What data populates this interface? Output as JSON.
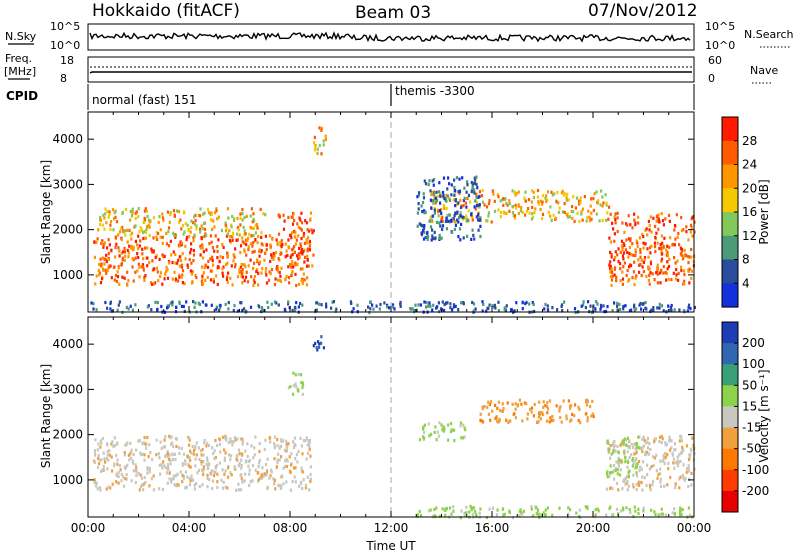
{
  "header": {
    "station": "Hokkaido (fitACF)",
    "beam": "Beam 03",
    "date": "07/Nov/2012"
  },
  "top_panels": {
    "nsky_label": "N.Sky",
    "nsky_ticks": [
      "10^5",
      "10^0"
    ],
    "nsearch_label": "N.Search",
    "nsearch_ticks": [
      "10^5",
      "10^0"
    ],
    "freq_label": "Freq.",
    "freq_unit": "[MHz]",
    "freq_ticks": [
      "18",
      "8"
    ],
    "nave_label": "Nave",
    "nave_ticks": [
      "60",
      "0"
    ],
    "cpid_label": "CPID",
    "cpid_modes": [
      {
        "name": "normal (fast) 151",
        "start_hour": 0
      },
      {
        "name": "themis -3300",
        "start_hour": 12
      }
    ]
  },
  "chart_data": [
    {
      "type": "heatmap",
      "title": "",
      "xlabel": "Time UT",
      "ylabel": "Slant Range [km]",
      "colorbar_label": "Power [dB]",
      "colorbar_ticks": [
        "28",
        "24",
        "20",
        "16",
        "12",
        "8",
        "4"
      ],
      "colorbar_colors": [
        "#ff1a00",
        "#ff5a00",
        "#ff9600",
        "#f5c800",
        "#82c85a",
        "#4b9a78",
        "#2a4c9c",
        "#1230dc"
      ],
      "x_ticks": [
        "00:00",
        "04:00",
        "08:00",
        "12:00",
        "16:00",
        "20:00",
        "00:00"
      ],
      "y_ticks": [
        "1000",
        "2000",
        "3000",
        "4000"
      ],
      "xlim": [
        0,
        24
      ],
      "ylim": [
        180,
        4600
      ],
      "grid": false,
      "regions": [
        {
          "x": [
            0.2,
            8.8
          ],
          "y": [
            800,
            1900
          ],
          "level": "high"
        },
        {
          "x": [
            0.3,
            7.0
          ],
          "y": [
            1900,
            2500
          ],
          "level": "medium"
        },
        {
          "x": [
            7.5,
            8.9
          ],
          "y": [
            1200,
            2400
          ],
          "level": "high"
        },
        {
          "x": [
            8.9,
            9.4
          ],
          "y": [
            3700,
            4300
          ],
          "level": "medium"
        },
        {
          "x": [
            13.5,
            20.6
          ],
          "y": [
            2200,
            2900
          ],
          "level": "medium"
        },
        {
          "x": [
            13.0,
            15.5
          ],
          "y": [
            1800,
            3200
          ],
          "level": "low"
        },
        {
          "x": [
            20.6,
            24.0
          ],
          "y": [
            800,
            2400
          ],
          "level": "high"
        },
        {
          "x": [
            0.0,
            24.0
          ],
          "y": [
            200,
            450
          ],
          "level": "low"
        }
      ]
    },
    {
      "type": "heatmap",
      "title": "",
      "xlabel": "Time UT",
      "ylabel": "Slant Range [km]",
      "colorbar_label": "Velocity [m s⁻¹]",
      "colorbar_ticks": [
        "200",
        "100",
        "50",
        "15",
        "-15",
        "-50",
        "-100",
        "-200"
      ],
      "colorbar_colors": [
        "#1e3cb4",
        "#2f67b0",
        "#3aa078",
        "#8cd24a",
        "#c8c8c0",
        "#f0a03c",
        "#ff7800",
        "#ff3c00",
        "#e60000"
      ],
      "x_ticks": [
        "00:00",
        "04:00",
        "08:00",
        "12:00",
        "16:00",
        "20:00",
        "00:00"
      ],
      "y_ticks": [
        "1000",
        "2000",
        "3000",
        "4000"
      ],
      "xlim": [
        0,
        24
      ],
      "ylim": [
        180,
        4600
      ],
      "grid": false,
      "regions": [
        {
          "x": [
            0.2,
            8.8
          ],
          "y": [
            800,
            2000
          ],
          "level": "-15"
        },
        {
          "x": [
            8.8,
            9.3
          ],
          "y": [
            3800,
            4200
          ],
          "level": "200"
        },
        {
          "x": [
            7.8,
            8.5
          ],
          "y": [
            2900,
            3400
          ],
          "level": "15"
        },
        {
          "x": [
            15.5,
            20.0
          ],
          "y": [
            2300,
            2800
          ],
          "level": "-50"
        },
        {
          "x": [
            13.0,
            15.0
          ],
          "y": [
            1900,
            2300
          ],
          "level": "15"
        },
        {
          "x": [
            20.5,
            24.0
          ],
          "y": [
            800,
            2000
          ],
          "level": "-15"
        },
        {
          "x": [
            20.5,
            21.8
          ],
          "y": [
            1100,
            2000
          ],
          "level": "15"
        },
        {
          "x": [
            13.0,
            24.0
          ],
          "y": [
            200,
            450
          ],
          "level": "15"
        }
      ]
    }
  ]
}
